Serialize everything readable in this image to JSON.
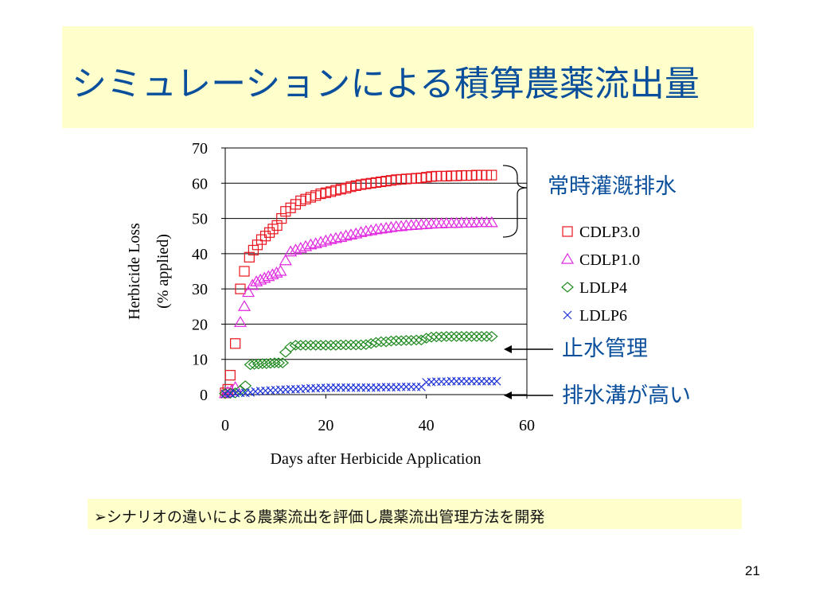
{
  "title": "シミュレーションによる積算農薬流出量",
  "note": "➢シナリオの違いによる農薬流出を評価し農薬流出管理方法を開発",
  "page_number": "21",
  "annotations": {
    "group_label": "常時灌漑排水",
    "label_ldlp4": "止水管理",
    "label_ldlp6": "排水溝が高い"
  },
  "colors": {
    "title": "#0a4f9c",
    "annotation": "#0a4f9c",
    "cdlp30": "#e8141e",
    "cdlp10": "#e028e0",
    "ldlp4": "#1f8a1f",
    "ldlp6": "#1a2fd6"
  },
  "chart_data": {
    "type": "scatter",
    "title": "",
    "xlabel": "Days after Herbicide Application",
    "ylabel": "Herbicide Loss",
    "ylabel2": "(% applied)",
    "xlim": [
      0,
      60
    ],
    "ylim": [
      0,
      70
    ],
    "xticks": [
      0,
      20,
      40,
      60
    ],
    "yticks": [
      0,
      10,
      20,
      30,
      40,
      50,
      60,
      70
    ],
    "grid": "horizontal",
    "legend_position": "right",
    "series": [
      {
        "name": "CDLP3.0",
        "marker": "square",
        "points": [
          [
            0,
            0.5
          ],
          [
            0.5,
            1.5
          ],
          [
            1,
            5.5
          ],
          [
            2,
            14.5
          ],
          [
            3,
            30
          ],
          [
            3.8,
            35
          ],
          [
            4.8,
            39
          ],
          [
            5.6,
            41
          ],
          [
            6.4,
            42.5
          ],
          [
            7.2,
            44
          ],
          [
            8,
            45
          ],
          [
            8.8,
            46
          ],
          [
            9.5,
            47
          ],
          [
            10.3,
            48
          ],
          [
            11.2,
            50
          ],
          [
            12,
            52
          ],
          [
            13,
            53
          ],
          [
            14,
            54
          ],
          [
            15,
            55
          ],
          [
            16,
            55.5
          ],
          [
            17,
            56
          ],
          [
            18,
            56.5
          ],
          [
            19,
            57
          ],
          [
            20,
            57.3
          ],
          [
            21,
            57.6
          ],
          [
            22,
            58
          ],
          [
            23,
            58.3
          ],
          [
            24,
            58.6
          ],
          [
            25,
            59
          ],
          [
            26,
            59.3
          ],
          [
            27,
            59.6
          ],
          [
            28,
            59.8
          ],
          [
            29,
            60
          ],
          [
            30,
            60.2
          ],
          [
            31,
            60.4
          ],
          [
            32,
            60.6
          ],
          [
            33,
            60.8
          ],
          [
            34,
            61
          ],
          [
            35,
            61.1
          ],
          [
            36,
            61.2
          ],
          [
            37,
            61.3
          ],
          [
            38,
            61.4
          ],
          [
            39,
            61.5
          ],
          [
            40,
            61.7
          ],
          [
            41,
            61.9
          ],
          [
            42,
            62
          ],
          [
            43,
            62
          ],
          [
            44,
            62
          ],
          [
            45,
            62.1
          ],
          [
            46,
            62.1
          ],
          [
            47,
            62.2
          ],
          [
            48,
            62.2
          ],
          [
            49,
            62.2
          ],
          [
            50,
            62.3
          ],
          [
            51,
            62.3
          ],
          [
            52,
            62.3
          ],
          [
            53,
            62.3
          ]
        ]
      },
      {
        "name": "CDLP1.0",
        "marker": "triangle",
        "points": [
          [
            0,
            0.3
          ],
          [
            0.5,
            0.6
          ],
          [
            1.2,
            1
          ],
          [
            2,
            2
          ],
          [
            3,
            20.5
          ],
          [
            3.8,
            25
          ],
          [
            4.6,
            29
          ],
          [
            5.4,
            31
          ],
          [
            6.2,
            32
          ],
          [
            7,
            32.5
          ],
          [
            7.8,
            33
          ],
          [
            8.6,
            33.5
          ],
          [
            9.4,
            34
          ],
          [
            10.2,
            34.5
          ],
          [
            11,
            35
          ],
          [
            12,
            38
          ],
          [
            13,
            40.5
          ],
          [
            14,
            41
          ],
          [
            15,
            41.5
          ],
          [
            16,
            42
          ],
          [
            17,
            42.5
          ],
          [
            18,
            42.8
          ],
          [
            19,
            43.2
          ],
          [
            20,
            43.6
          ],
          [
            21,
            44
          ],
          [
            22,
            44.3
          ],
          [
            23,
            44.6
          ],
          [
            24,
            45
          ],
          [
            25,
            45.3
          ],
          [
            26,
            45.6
          ],
          [
            27,
            46
          ],
          [
            28,
            46.3
          ],
          [
            29,
            46.5
          ],
          [
            30,
            46.8
          ],
          [
            31,
            47
          ],
          [
            32,
            47.2
          ],
          [
            33,
            47.4
          ],
          [
            34,
            47.6
          ],
          [
            35,
            47.7
          ],
          [
            36,
            47.9
          ],
          [
            37,
            48
          ],
          [
            38,
            48.1
          ],
          [
            39,
            48.2
          ],
          [
            40,
            48.3
          ],
          [
            41,
            48.4
          ],
          [
            42,
            48.5
          ],
          [
            43,
            48.5
          ],
          [
            44,
            48.6
          ],
          [
            45,
            48.6
          ],
          [
            46,
            48.6
          ],
          [
            47,
            48.7
          ],
          [
            48,
            48.7
          ],
          [
            49,
            48.7
          ],
          [
            50,
            48.8
          ],
          [
            51,
            48.8
          ],
          [
            52,
            48.8
          ],
          [
            53,
            48.8
          ]
        ]
      },
      {
        "name": "LDLP4",
        "marker": "diamond",
        "points": [
          [
            0,
            0.3
          ],
          [
            1,
            0.4
          ],
          [
            2,
            0.5
          ],
          [
            3,
            1.2
          ],
          [
            4,
            2.5
          ],
          [
            5,
            8.5
          ],
          [
            5.8,
            8.6
          ],
          [
            6.6,
            8.7
          ],
          [
            7.4,
            8.8
          ],
          [
            8.2,
            8.8
          ],
          [
            9,
            8.9
          ],
          [
            9.8,
            9
          ],
          [
            10.6,
            9
          ],
          [
            11.4,
            9
          ],
          [
            12,
            12
          ],
          [
            13,
            13.5
          ],
          [
            14,
            14
          ],
          [
            15,
            14
          ],
          [
            16,
            14
          ],
          [
            17,
            14
          ],
          [
            18,
            14
          ],
          [
            19,
            14
          ],
          [
            20,
            14
          ],
          [
            21,
            14
          ],
          [
            22,
            14
          ],
          [
            23,
            14.1
          ],
          [
            24,
            14.1
          ],
          [
            25,
            14.1
          ],
          [
            26,
            14.1
          ],
          [
            27,
            14.1
          ],
          [
            28,
            14.2
          ],
          [
            29,
            14.5
          ],
          [
            30,
            14.8
          ],
          [
            31,
            15
          ],
          [
            32,
            15
          ],
          [
            33,
            15.2
          ],
          [
            34,
            15.3
          ],
          [
            35,
            15.3
          ],
          [
            36,
            15.4
          ],
          [
            37,
            15.4
          ],
          [
            38,
            15.5
          ],
          [
            39,
            15.5
          ],
          [
            40,
            16
          ],
          [
            41,
            16.3
          ],
          [
            42,
            16.4
          ],
          [
            43,
            16.4
          ],
          [
            44,
            16.5
          ],
          [
            45,
            16.5
          ],
          [
            46,
            16.5
          ],
          [
            47,
            16.5
          ],
          [
            48,
            16.5
          ],
          [
            49,
            16.5
          ],
          [
            50,
            16.5
          ],
          [
            51,
            16.5
          ],
          [
            52,
            16.5
          ],
          [
            53,
            16.5
          ]
        ]
      },
      {
        "name": "LDLP6",
        "marker": "cross",
        "points": [
          [
            0,
            0.2
          ],
          [
            1,
            0.3
          ],
          [
            2,
            0.4
          ],
          [
            3,
            0.5
          ],
          [
            4,
            0.5
          ],
          [
            5,
            0.6
          ],
          [
            6,
            0.9
          ],
          [
            7,
            1
          ],
          [
            8,
            1.1
          ],
          [
            9,
            1.2
          ],
          [
            10,
            1.3
          ],
          [
            11,
            1.4
          ],
          [
            12,
            1.4
          ],
          [
            13,
            1.5
          ],
          [
            14,
            1.5
          ],
          [
            15,
            1.6
          ],
          [
            16,
            1.7
          ],
          [
            17,
            1.8
          ],
          [
            18,
            1.8
          ],
          [
            19,
            1.9
          ],
          [
            20,
            1.9
          ],
          [
            21,
            2
          ],
          [
            22,
            2
          ],
          [
            23,
            2
          ],
          [
            24,
            2
          ],
          [
            25,
            2
          ],
          [
            26,
            2
          ],
          [
            27,
            2
          ],
          [
            28,
            2
          ],
          [
            29,
            2
          ],
          [
            30,
            2
          ],
          [
            31,
            2.1
          ],
          [
            32,
            2.1
          ],
          [
            33,
            2.1
          ],
          [
            34,
            2.1
          ],
          [
            35,
            2.2
          ],
          [
            36,
            2.2
          ],
          [
            37,
            2.2
          ],
          [
            38,
            2.2
          ],
          [
            39,
            2.2
          ],
          [
            40,
            3.5
          ],
          [
            41,
            3.6
          ],
          [
            42,
            3.7
          ],
          [
            43,
            3.7
          ],
          [
            44,
            3.7
          ],
          [
            45,
            3.8
          ],
          [
            46,
            3.8
          ],
          [
            47,
            3.8
          ],
          [
            48,
            3.8
          ],
          [
            49,
            3.8
          ],
          [
            50,
            3.8
          ],
          [
            51,
            3.8
          ],
          [
            52,
            3.8
          ],
          [
            53,
            3.8
          ],
          [
            54,
            3.8
          ]
        ]
      }
    ]
  }
}
